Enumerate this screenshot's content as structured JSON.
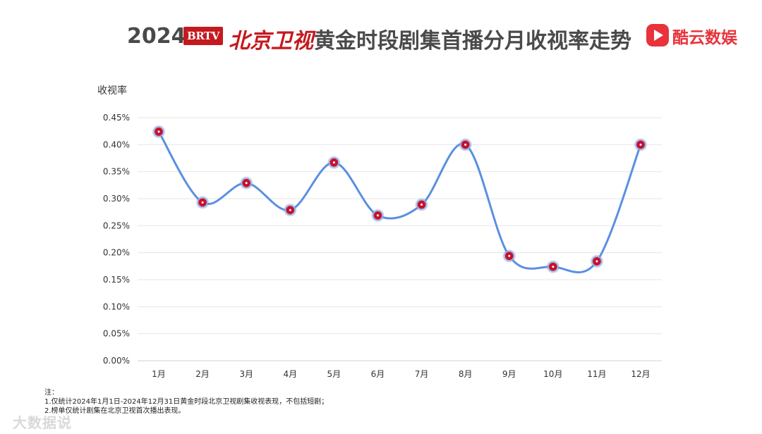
{
  "header": {
    "year": "2024",
    "logo_text": "BRTV",
    "channel": "北京卫视",
    "title_rest": "黄金时段剧集首播分月收视率走势",
    "brand": "酷云数娱",
    "brand_color": "#e8333c",
    "brand_icon": "play-triangle-icon"
  },
  "chart_data": {
    "type": "line",
    "categories": [
      "1月",
      "2月",
      "3月",
      "4月",
      "5月",
      "6月",
      "7月",
      "8月",
      "9月",
      "10月",
      "11月",
      "12月"
    ],
    "series": [
      {
        "values": [
          0.424,
          0.293,
          0.329,
          0.279,
          0.367,
          0.269,
          0.289,
          0.4,
          0.194,
          0.174,
          0.184,
          0.4
        ]
      }
    ],
    "ylabel": "收视率",
    "ylim": [
      0,
      0.45
    ],
    "yticks": [
      0,
      0.05,
      0.1,
      0.15,
      0.2,
      0.25,
      0.3,
      0.35,
      0.4,
      0.45
    ],
    "ytick_labels": [
      "0.00%",
      "0.05%",
      "0.10%",
      "0.15%",
      "0.20%",
      "0.25%",
      "0.30%",
      "0.35%",
      "0.40%",
      "0.45%"
    ],
    "grid": true,
    "line_color": "#5b8fe0",
    "marker_color": "#c8102e"
  },
  "notes": {
    "title": "注：",
    "line1": "1.仅统计2024年1月1日-2024年12月31日黄金时段北京卫视剧集收视表现，不包括短剧；",
    "line2": "2.榜单仅统计剧集在北京卫视首次播出表现。"
  },
  "watermark": "大数据说"
}
